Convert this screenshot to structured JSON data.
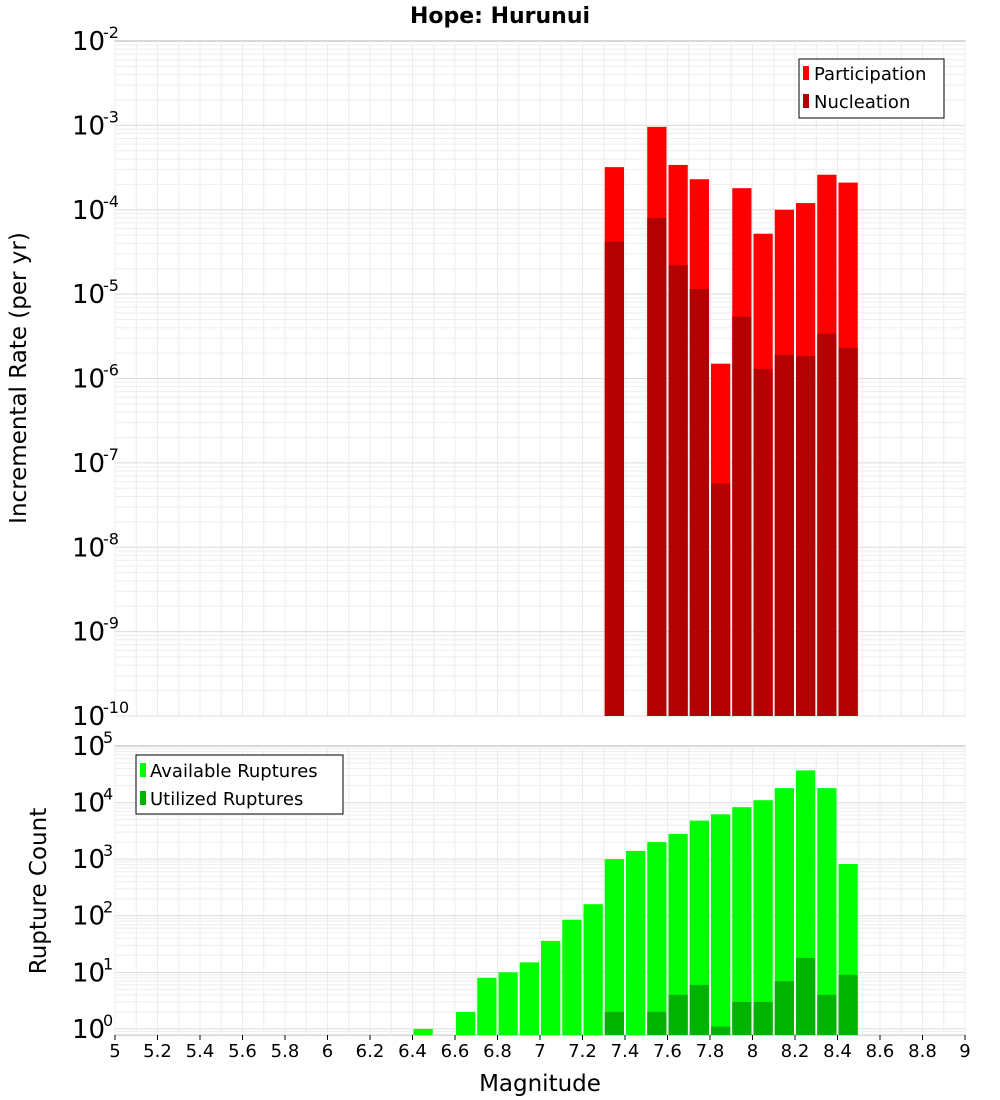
{
  "chart_data": [
    {
      "type": "bar",
      "title": "Hope: Hurunui",
      "ylabel": "Incremental Rate (per yr)",
      "xlabel": "",
      "yscale": "log",
      "xlim": [
        5,
        9
      ],
      "ylim": [
        1e-10,
        0.01
      ],
      "ytick_exponents": [
        "-2",
        "-3",
        "-4",
        "-5",
        "-6",
        "-7",
        "-8",
        "-9",
        "-10"
      ],
      "ytick_base": "10",
      "grid": true,
      "legend_position": "top-right",
      "bin_width": 0.1,
      "x": [
        7.35,
        7.55,
        7.65,
        7.75,
        7.85,
        7.95,
        8.05,
        8.15,
        8.25,
        8.35,
        8.45
      ],
      "series": [
        {
          "name": "Participation",
          "color": "#ff0000",
          "values": [
            0.00032,
            0.00096,
            0.00034,
            0.00023,
            1.5e-06,
            0.00018,
            5.2e-05,
            0.0001,
            0.00012,
            0.00026,
            0.00021
          ]
        },
        {
          "name": "Nucleation",
          "color": "#b30000",
          "values": [
            4.2e-05,
            8e-05,
            2.2e-05,
            1.15e-05,
            5.7e-08,
            5.4e-06,
            1.3e-06,
            1.9e-06,
            1.85e-06,
            3.4e-06,
            2.3e-06
          ]
        }
      ]
    },
    {
      "type": "bar",
      "title": "",
      "ylabel": "Rupture Count",
      "xlabel": "Magnitude",
      "yscale": "log",
      "xlim": [
        5,
        9
      ],
      "ylim": [
        0.78,
        100000.0
      ],
      "ytick_exponents": [
        "5",
        "4",
        "3",
        "2",
        "1",
        "0"
      ],
      "ytick_base": "10",
      "xticks": [
        "5",
        "5.2",
        "5.4",
        "5.6",
        "5.8",
        "6",
        "6.2",
        "6.4",
        "6.6",
        "6.8",
        "7",
        "7.2",
        "7.4",
        "7.6",
        "7.8",
        "8",
        "8.2",
        "8.4",
        "8.6",
        "8.8",
        "9"
      ],
      "grid": true,
      "legend_position": "top-left",
      "bin_width": 0.1,
      "x": [
        6.45,
        6.65,
        6.75,
        6.85,
        6.95,
        7.05,
        7.15,
        7.25,
        7.35,
        7.45,
        7.55,
        7.65,
        7.75,
        7.85,
        7.95,
        8.05,
        8.15,
        8.25,
        8.35,
        8.45
      ],
      "series": [
        {
          "name": "Available Ruptures",
          "color": "#00ff00",
          "values": [
            1,
            2,
            8,
            10,
            15,
            36,
            85,
            160,
            1000,
            1400,
            2000,
            2800,
            4800,
            6200,
            8300,
            11000,
            18000,
            37000,
            18000,
            820
          ]
        },
        {
          "name": "Utilized Ruptures",
          "color": "#00b300",
          "values": [
            null,
            null,
            null,
            null,
            null,
            null,
            null,
            null,
            2,
            null,
            2,
            4,
            6,
            1.1,
            3,
            3,
            7,
            18,
            4,
            9
          ]
        }
      ]
    }
  ]
}
